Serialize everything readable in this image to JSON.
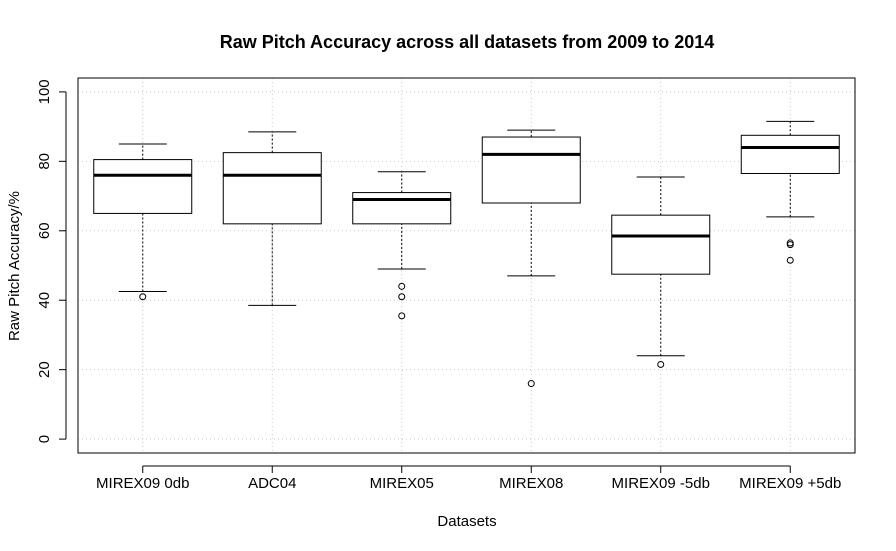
{
  "chart_data": {
    "type": "box",
    "title": "Raw Pitch Accuracy across all datasets from 2009 to 2014",
    "xlabel": "Datasets",
    "ylabel": "Raw Pitch Accuracy/%",
    "ylim": [
      -4,
      104
    ],
    "yticks": [
      0,
      20,
      40,
      60,
      80,
      100
    ],
    "grid": true,
    "categories": [
      "MIREX09 0db",
      "ADC04",
      "MIREX05",
      "MIREX08",
      "MIREX09 -5db",
      "MIREX09 +5db"
    ],
    "boxes": [
      {
        "name": "MIREX09 0db",
        "whisker_low": 42.5,
        "q1": 65,
        "median": 76,
        "q3": 80.5,
        "whisker_high": 85,
        "outliers": [
          41
        ]
      },
      {
        "name": "ADC04",
        "whisker_low": 38.5,
        "q1": 62,
        "median": 76,
        "q3": 82.5,
        "whisker_high": 88.5,
        "outliers": []
      },
      {
        "name": "MIREX05",
        "whisker_low": 49,
        "q1": 62,
        "median": 69,
        "q3": 71,
        "whisker_high": 77,
        "outliers": [
          44,
          41,
          35.5
        ]
      },
      {
        "name": "MIREX08",
        "whisker_low": 47,
        "q1": 68,
        "median": 82,
        "q3": 87,
        "whisker_high": 89,
        "outliers": [
          16
        ]
      },
      {
        "name": "MIREX09 -5db",
        "whisker_low": 24,
        "q1": 47.5,
        "median": 58.5,
        "q3": 64.5,
        "whisker_high": 75.5,
        "outliers": [
          21.5
        ]
      },
      {
        "name": "MIREX09 +5db",
        "whisker_low": 64,
        "q1": 76.5,
        "median": 84,
        "q3": 87.5,
        "whisker_high": 91.5,
        "outliers": [
          56.5,
          56,
          51.5
        ]
      }
    ]
  }
}
